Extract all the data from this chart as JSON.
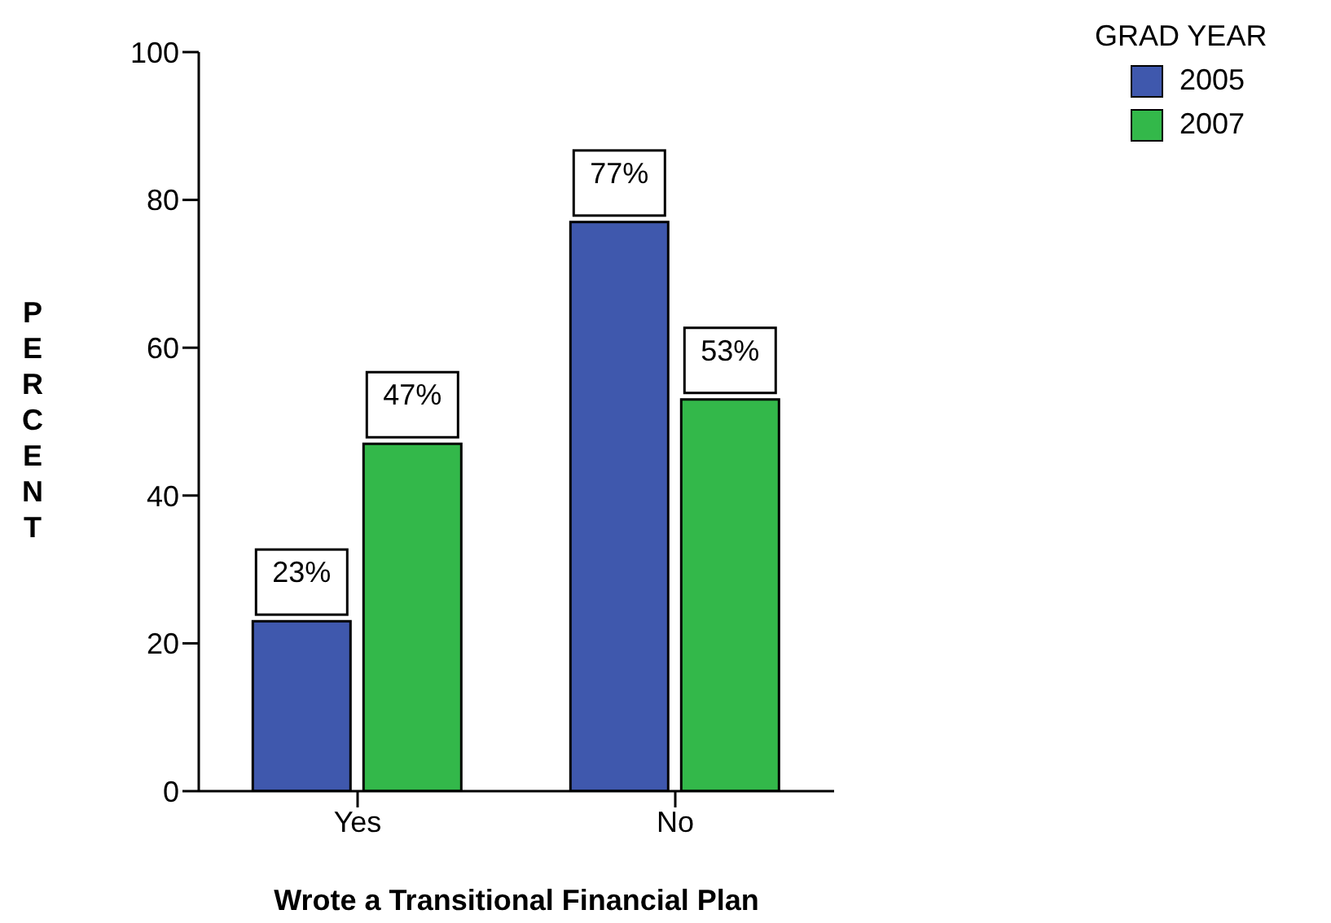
{
  "chart_data": {
    "type": "bar",
    "xlabel": "Wrote a Transitional Financial Plan",
    "ylabel": "PERCENT",
    "legend_title": "GRAD YEAR",
    "categories": [
      "Yes",
      "No"
    ],
    "series": [
      {
        "name": "2005",
        "color": "#3f58ad",
        "values": [
          23,
          77
        ],
        "value_labels": [
          "23%",
          "77%"
        ]
      },
      {
        "name": "2007",
        "color": "#33b84a",
        "values": [
          47,
          53
        ],
        "value_labels": [
          "47%",
          "53%"
        ]
      }
    ],
    "ylim": [
      0,
      100
    ],
    "yticks": [
      0,
      20,
      40,
      60,
      80,
      100
    ],
    "grid": false,
    "legend": "top right"
  }
}
